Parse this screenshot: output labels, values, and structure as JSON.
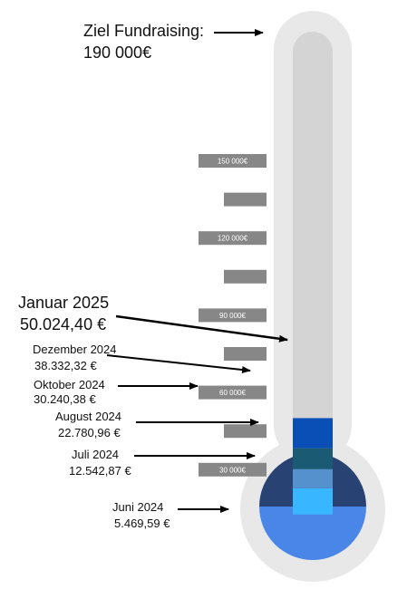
{
  "goal": {
    "label": "Ziel Fundraising:",
    "value": "190 000€",
    "amount": 190000
  },
  "chart_data": {
    "type": "bar",
    "title": "",
    "ylim": [
      0,
      190000
    ],
    "ticks": [
      {
        "value": 150000,
        "label": "150 000€"
      },
      {
        "value": 135000,
        "label": ""
      },
      {
        "value": 120000,
        "label": "120 000€"
      },
      {
        "value": 105000,
        "label": ""
      },
      {
        "value": 90000,
        "label": "90 000€"
      },
      {
        "value": 75000,
        "label": ""
      },
      {
        "value": 60000,
        "label": "60 000€"
      },
      {
        "value": 45000,
        "label": ""
      },
      {
        "value": 30000,
        "label": "30 000€"
      }
    ],
    "milestones": [
      {
        "month": "Juni 2024",
        "amount_label": "5.469,59 €",
        "value": 5469.59,
        "color": "#4a86e8"
      },
      {
        "month": "Juli 2024",
        "amount_label": "12.542,87 €",
        "value": 12542.87,
        "color": "#284373"
      },
      {
        "month": "August 2024",
        "amount_label": "22.780,96 €",
        "value": 22780.96,
        "color": "#38b6ff"
      },
      {
        "month": "Oktober 2024",
        "amount_label": "30.240,38 €",
        "value": 30240.38,
        "color": "#5591cc"
      },
      {
        "month": "Dezember 2024",
        "amount_label": "38.332,32 €",
        "value": 38332.32,
        "color": "#1a5a73"
      },
      {
        "month": "Januar 2025",
        "amount_label": "50.024,40 €",
        "value": 50024.4,
        "color": "#0a4fb5"
      }
    ],
    "colors": {
      "outline": "#e8e8e8",
      "tube": "#d4d4d4",
      "tick_box": "#878787",
      "arrow": "#000000"
    }
  }
}
